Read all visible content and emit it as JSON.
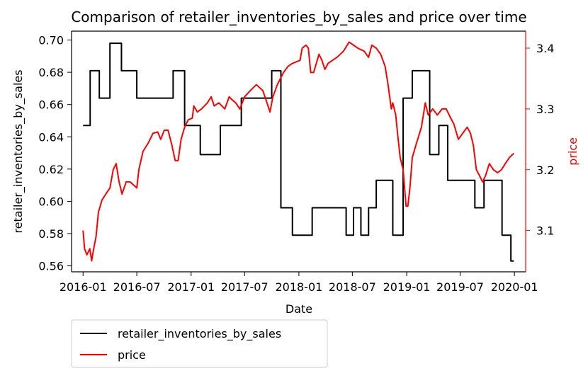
{
  "chart_data": {
    "type": "line",
    "title": "Comparison of retailer_inventories_by_sales and price over time",
    "xlabel": "Date",
    "ylabel_left": "retailer_inventories_by_sales",
    "ylabel_right": "price",
    "x_ticks": [
      "2016-01",
      "2016-07",
      "2017-01",
      "2017-07",
      "2018-01",
      "2018-07",
      "2019-01",
      "2019-07",
      "2020-01"
    ],
    "y_left_ticks": [
      "0.56",
      "0.58",
      "0.60",
      "0.62",
      "0.64",
      "0.66",
      "0.68",
      "0.70"
    ],
    "y_right_ticks": [
      "3.1",
      "3.2",
      "3.3",
      "3.4"
    ],
    "xlim": [
      "2015-11-23",
      "2020-02-08"
    ],
    "ylim_left": [
      0.5563,
      0.7055
    ],
    "ylim_right": [
      3.032,
      3.428
    ],
    "grid": false,
    "legend_position": "below-left",
    "series": [
      {
        "name": "retailer_inventories_by_sales",
        "axis": "left",
        "color": "#000000",
        "step": true,
        "points": [
          [
            "2016-01-01",
            0.647
          ],
          [
            "2016-01-25",
            0.647
          ],
          [
            "2016-01-25",
            0.681
          ],
          [
            "2016-02-25",
            0.681
          ],
          [
            "2016-02-25",
            0.664
          ],
          [
            "2016-04-01",
            0.664
          ],
          [
            "2016-04-01",
            0.698
          ],
          [
            "2016-05-10",
            0.698
          ],
          [
            "2016-05-10",
            0.681
          ],
          [
            "2016-07-01",
            0.681
          ],
          [
            "2016-07-01",
            0.664
          ],
          [
            "2016-11-01",
            0.664
          ],
          [
            "2016-11-01",
            0.681
          ],
          [
            "2016-12-10",
            0.681
          ],
          [
            "2016-12-10",
            0.647
          ],
          [
            "2017-02-01",
            0.647
          ],
          [
            "2017-02-01",
            0.629
          ],
          [
            "2017-04-10",
            0.629
          ],
          [
            "2017-04-10",
            0.647
          ],
          [
            "2017-06-20",
            0.647
          ],
          [
            "2017-06-20",
            0.664
          ],
          [
            "2017-10-01",
            0.664
          ],
          [
            "2017-10-01",
            0.681
          ],
          [
            "2017-11-01",
            0.681
          ],
          [
            "2017-11-01",
            0.596
          ],
          [
            "2017-12-10",
            0.596
          ],
          [
            "2017-12-10",
            0.579
          ],
          [
            "2018-02-15",
            0.579
          ],
          [
            "2018-02-15",
            0.596
          ],
          [
            "2018-06-10",
            0.596
          ],
          [
            "2018-06-10",
            0.579
          ],
          [
            "2018-07-05",
            0.579
          ],
          [
            "2018-07-05",
            0.596
          ],
          [
            "2018-07-30",
            0.596
          ],
          [
            "2018-07-30",
            0.579
          ],
          [
            "2018-08-25",
            0.579
          ],
          [
            "2018-08-25",
            0.596
          ],
          [
            "2018-09-20",
            0.596
          ],
          [
            "2018-09-20",
            0.613
          ],
          [
            "2018-11-15",
            0.613
          ],
          [
            "2018-11-15",
            0.579
          ],
          [
            "2018-12-20",
            0.579
          ],
          [
            "2018-12-20",
            0.664
          ],
          [
            "2019-01-20",
            0.664
          ],
          [
            "2019-01-20",
            0.681
          ],
          [
            "2019-03-20",
            0.681
          ],
          [
            "2019-03-20",
            0.629
          ],
          [
            "2019-04-20",
            0.629
          ],
          [
            "2019-04-20",
            0.647
          ],
          [
            "2019-05-20",
            0.647
          ],
          [
            "2019-05-20",
            0.613
          ],
          [
            "2019-08-20",
            0.613
          ],
          [
            "2019-08-20",
            0.596
          ],
          [
            "2019-09-20",
            0.596
          ],
          [
            "2019-09-20",
            0.613
          ],
          [
            "2019-11-20",
            0.613
          ],
          [
            "2019-11-20",
            0.579
          ],
          [
            "2019-12-20",
            0.579
          ],
          [
            "2019-12-20",
            0.563
          ],
          [
            "2019-12-30",
            0.563
          ]
        ]
      },
      {
        "name": "price",
        "axis": "right",
        "color": "#ff0000",
        "step": false,
        "points": [
          [
            "2016-01-01",
            3.1
          ],
          [
            "2016-01-06",
            3.07
          ],
          [
            "2016-01-14",
            3.06
          ],
          [
            "2016-01-24",
            3.07
          ],
          [
            "2016-01-30",
            3.05
          ],
          [
            "2016-02-06",
            3.07
          ],
          [
            "2016-02-14",
            3.09
          ],
          [
            "2016-02-22",
            3.13
          ],
          [
            "2016-03-05",
            3.15
          ],
          [
            "2016-03-18",
            3.16
          ],
          [
            "2016-04-01",
            3.17
          ],
          [
            "2016-04-12",
            3.2
          ],
          [
            "2016-04-22",
            3.21
          ],
          [
            "2016-05-02",
            3.18
          ],
          [
            "2016-05-12",
            3.16
          ],
          [
            "2016-05-26",
            3.18
          ],
          [
            "2016-06-08",
            3.18
          ],
          [
            "2016-06-20",
            3.175
          ],
          [
            "2016-07-01",
            3.17
          ],
          [
            "2016-07-08",
            3.2
          ],
          [
            "2016-07-22",
            3.23
          ],
          [
            "2016-08-10",
            3.245
          ],
          [
            "2016-08-25",
            3.26
          ],
          [
            "2016-09-10",
            3.262
          ],
          [
            "2016-09-20",
            3.25
          ],
          [
            "2016-10-02",
            3.265
          ],
          [
            "2016-10-15",
            3.265
          ],
          [
            "2016-10-28",
            3.24
          ],
          [
            "2016-11-08",
            3.215
          ],
          [
            "2016-11-18",
            3.215
          ],
          [
            "2016-11-28",
            3.25
          ],
          [
            "2016-12-10",
            3.27
          ],
          [
            "2016-12-22",
            3.282
          ],
          [
            "2017-01-05",
            3.285
          ],
          [
            "2017-01-10",
            3.305
          ],
          [
            "2017-01-22",
            3.295
          ],
          [
            "2017-02-05",
            3.3
          ],
          [
            "2017-02-25",
            3.31
          ],
          [
            "2017-03-10",
            3.32
          ],
          [
            "2017-03-20",
            3.305
          ],
          [
            "2017-04-05",
            3.31
          ],
          [
            "2017-04-25",
            3.3
          ],
          [
            "2017-05-10",
            3.32
          ],
          [
            "2017-05-20",
            3.315
          ],
          [
            "2017-06-01",
            3.31
          ],
          [
            "2017-06-15",
            3.3
          ],
          [
            "2017-07-01",
            3.32
          ],
          [
            "2017-07-20",
            3.33
          ],
          [
            "2017-08-10",
            3.34
          ],
          [
            "2017-09-01",
            3.33
          ],
          [
            "2017-09-15",
            3.31
          ],
          [
            "2017-09-25",
            3.295
          ],
          [
            "2017-10-05",
            3.32
          ],
          [
            "2017-10-20",
            3.34
          ],
          [
            "2017-11-10",
            3.36
          ],
          [
            "2017-11-25",
            3.37
          ],
          [
            "2017-12-10",
            3.375
          ],
          [
            "2018-01-05",
            3.38
          ],
          [
            "2018-01-12",
            3.4
          ],
          [
            "2018-01-25",
            3.405
          ],
          [
            "2018-02-02",
            3.4
          ],
          [
            "2018-02-10",
            3.36
          ],
          [
            "2018-02-20",
            3.36
          ],
          [
            "2018-03-10",
            3.39
          ],
          [
            "2018-03-20",
            3.38
          ],
          [
            "2018-03-30",
            3.365
          ],
          [
            "2018-04-10",
            3.375
          ],
          [
            "2018-04-25",
            3.38
          ],
          [
            "2018-05-10",
            3.385
          ],
          [
            "2018-06-01",
            3.395
          ],
          [
            "2018-06-20",
            3.41
          ],
          [
            "2018-07-05",
            3.405
          ],
          [
            "2018-07-20",
            3.4
          ],
          [
            "2018-08-10",
            3.395
          ],
          [
            "2018-08-25",
            3.385
          ],
          [
            "2018-09-05",
            3.405
          ],
          [
            "2018-09-20",
            3.4
          ],
          [
            "2018-10-05",
            3.39
          ],
          [
            "2018-10-20",
            3.37
          ],
          [
            "2018-10-30",
            3.34
          ],
          [
            "2018-11-10",
            3.3
          ],
          [
            "2018-11-15",
            3.31
          ],
          [
            "2018-11-25",
            3.29
          ],
          [
            "2018-12-01",
            3.26
          ],
          [
            "2018-12-10",
            3.22
          ],
          [
            "2018-12-20",
            3.2
          ],
          [
            "2018-12-30",
            3.14
          ],
          [
            "2019-01-05",
            3.14
          ],
          [
            "2019-01-12",
            3.17
          ],
          [
            "2019-01-20",
            3.22
          ],
          [
            "2019-02-01",
            3.24
          ],
          [
            "2019-02-20",
            3.27
          ],
          [
            "2019-03-05",
            3.31
          ],
          [
            "2019-03-15",
            3.29
          ],
          [
            "2019-03-30",
            3.3
          ],
          [
            "2019-04-15",
            3.29
          ],
          [
            "2019-05-01",
            3.3
          ],
          [
            "2019-05-15",
            3.3
          ],
          [
            "2019-05-30",
            3.285
          ],
          [
            "2019-06-10",
            3.275
          ],
          [
            "2019-06-25",
            3.25
          ],
          [
            "2019-07-10",
            3.26
          ],
          [
            "2019-07-25",
            3.27
          ],
          [
            "2019-08-05",
            3.26
          ],
          [
            "2019-08-15",
            3.24
          ],
          [
            "2019-08-25",
            3.2
          ],
          [
            "2019-09-05",
            3.19
          ],
          [
            "2019-09-15",
            3.18
          ],
          [
            "2019-09-25",
            3.19
          ],
          [
            "2019-10-08",
            3.21
          ],
          [
            "2019-10-22",
            3.2
          ],
          [
            "2019-11-05",
            3.195
          ],
          [
            "2019-11-18",
            3.2
          ],
          [
            "2019-12-01",
            3.21
          ],
          [
            "2019-12-15",
            3.22
          ],
          [
            "2019-12-30",
            3.227
          ]
        ]
      }
    ]
  }
}
